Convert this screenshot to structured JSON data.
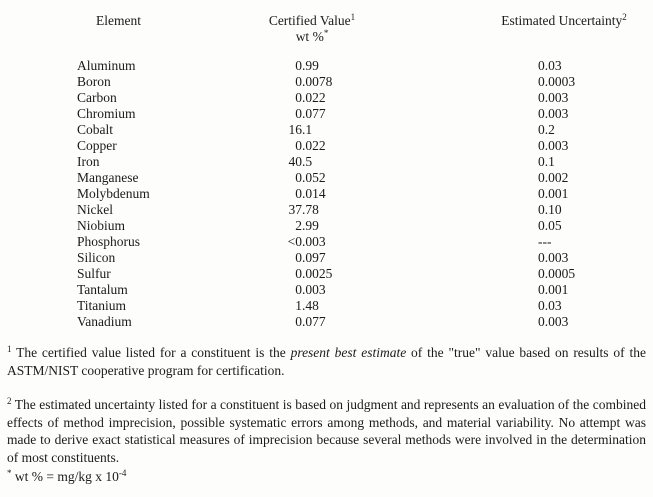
{
  "page": {
    "background": "#fdfdfc",
    "text_color": "#1b1b1b"
  },
  "table": {
    "headers": {
      "element": "Element",
      "certified_value": "Certified Value",
      "certified_value_sup": "1",
      "certified_value_unit": "wt %",
      "certified_value_unit_sup": "*",
      "estimated_uncertainty": "Estimated Uncertainty",
      "estimated_uncertainty_sup": "2"
    },
    "rows": [
      {
        "element": "Aluminum",
        "certified_value": "0.99",
        "uncertainty": "0.03"
      },
      {
        "element": "Boron",
        "certified_value": "0.0078",
        "uncertainty": "0.0003"
      },
      {
        "element": "Carbon",
        "certified_value": "0.022",
        "uncertainty": "0.003"
      },
      {
        "element": "Chromium",
        "certified_value": "0.077",
        "uncertainty": "0.003"
      },
      {
        "element": "Cobalt",
        "certified_value": "16.1",
        "uncertainty": "0.2"
      },
      {
        "element": "Copper",
        "certified_value": "0.022",
        "uncertainty": "0.003"
      },
      {
        "element": "Iron",
        "certified_value": "40.5",
        "uncertainty": "0.1"
      },
      {
        "element": "Manganese",
        "certified_value": "0.052",
        "uncertainty": "0.002"
      },
      {
        "element": "Molybdenum",
        "certified_value": "0.014",
        "uncertainty": "0.001"
      },
      {
        "element": "Nickel",
        "certified_value": "37.78",
        "uncertainty": "0.10"
      },
      {
        "element": "Niobium",
        "certified_value": "2.99",
        "uncertainty": "0.05"
      },
      {
        "element": "Phosphorus",
        "certified_value": "<0.003",
        "uncertainty": "---"
      },
      {
        "element": "Silicon",
        "certified_value": "0.097",
        "uncertainty": "0.003"
      },
      {
        "element": "Sulfur",
        "certified_value": "0.0025",
        "uncertainty": "0.0005"
      },
      {
        "element": "Tantalum",
        "certified_value": "0.003",
        "uncertainty": "0.001"
      },
      {
        "element": "Titanium",
        "certified_value": "1.48",
        "uncertainty": "0.03"
      },
      {
        "element": "Vanadium",
        "certified_value": "0.077",
        "uncertainty": "0.003"
      }
    ]
  },
  "footnotes": {
    "note1": {
      "sup": "1",
      "pre": " The certified value listed for a constituent is the ",
      "italic": "present best estimate",
      "post": " of the \"true\" value based on results of the ASTM/NIST cooperative program for certification."
    },
    "note2": {
      "sup": "2",
      "text": " The estimated uncertainty listed for a constituent is based on judgment and represents an evaluation of the combined effects of method imprecision, possible systematic errors among methods, and material variability.  No attempt was made to derive exact statistical measures of imprecision because several methods were involved in the determination of most constituents."
    },
    "note3": {
      "sup": "*",
      "text": " wt % = mg/kg x 10",
      "exponent": "-4"
    }
  }
}
